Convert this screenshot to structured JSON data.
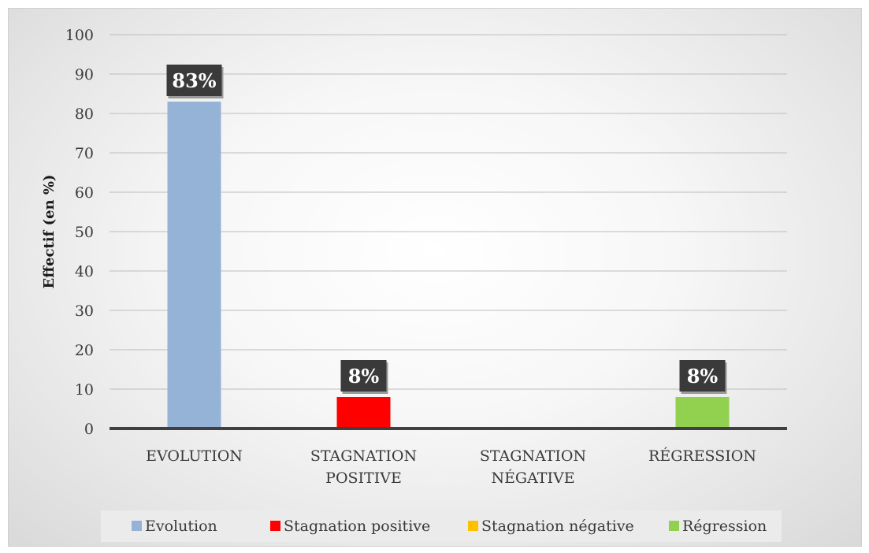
{
  "chart_data": {
    "type": "bar",
    "categories": [
      "EVOLUTION",
      "STAGNATION POSITIVE",
      "STAGNATION NÉGATIVE",
      "RÉGRESSION"
    ],
    "category_lines": [
      [
        "EVOLUTION"
      ],
      [
        "STAGNATION",
        "POSITIVE"
      ],
      [
        "STAGNATION",
        "NÉGATIVE"
      ],
      [
        "RÉGRESSION"
      ]
    ],
    "series": [
      {
        "name": "Evolution",
        "values": [
          83,
          null,
          null,
          null
        ],
        "color": "#95b3d7"
      },
      {
        "name": "Stagnation positive",
        "values": [
          null,
          8,
          null,
          null
        ],
        "color": "#ff0000"
      },
      {
        "name": "Stagnation négative",
        "values": [
          null,
          null,
          0,
          null
        ],
        "color": "#ffc000"
      },
      {
        "name": "Régression",
        "values": [
          null,
          null,
          null,
          8
        ],
        "color": "#92d050"
      }
    ],
    "data_labels": [
      "83%",
      "8%",
      null,
      "8%"
    ],
    "title": "",
    "xlabel": "",
    "ylabel": "Effectif (en %)",
    "ylim": [
      0,
      100
    ],
    "yticks": [
      0,
      10,
      20,
      30,
      40,
      50,
      60,
      70,
      80,
      90,
      100
    ],
    "grid": true,
    "legend_position": "bottom"
  }
}
